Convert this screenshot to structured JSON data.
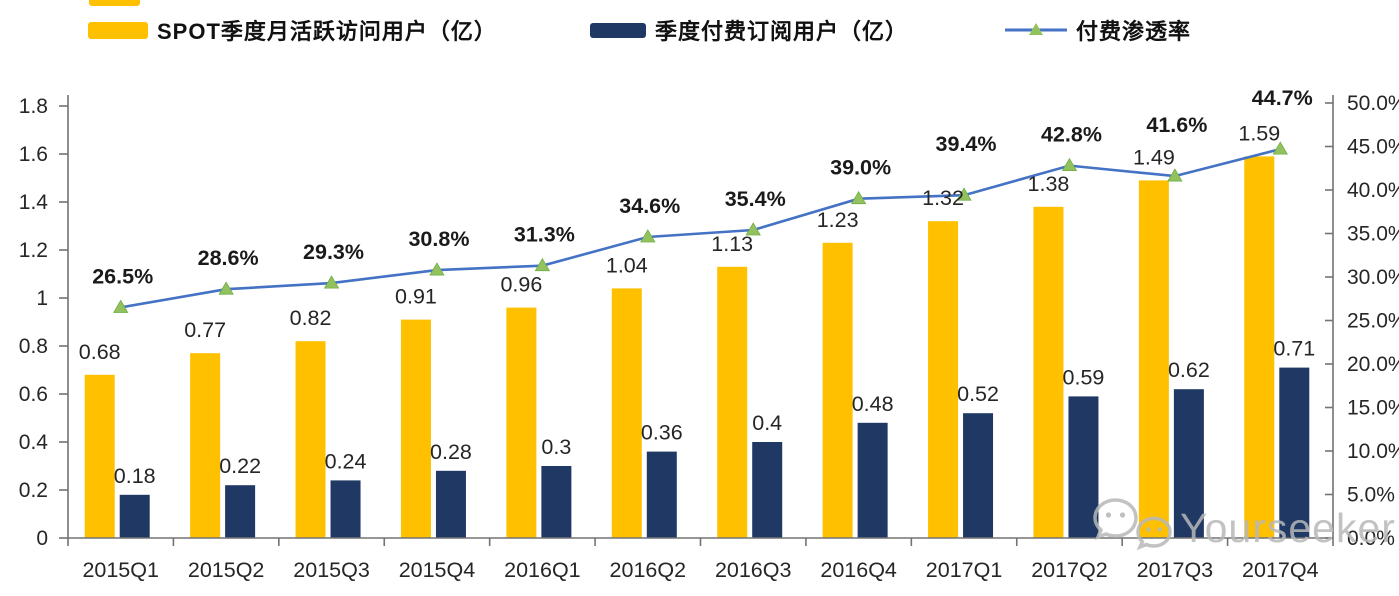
{
  "page": {
    "background": "#FFFFFF"
  },
  "legend": {
    "position": "top",
    "items": [
      {
        "id": "mau",
        "label": "SPOT季度月活跃访问用户（亿）",
        "swatch": "bar",
        "color": "#FFC000"
      },
      {
        "id": "subscribers",
        "label": "季度付费订阅用户（亿）",
        "swatch": "bar",
        "color": "#1F3864"
      },
      {
        "id": "penetration",
        "label": "付费渗透率",
        "swatch": "line-with-triangle-marker",
        "line_color": "#4472C4",
        "marker_color": "#93C15E"
      }
    ]
  },
  "chart_data": {
    "type": "combo-bar-line",
    "categories": [
      "2015Q1",
      "2015Q2",
      "2015Q3",
      "2015Q4",
      "2016Q1",
      "2016Q2",
      "2016Q3",
      "2016Q4",
      "2017Q1",
      "2017Q2",
      "2017Q3",
      "2017Q4"
    ],
    "series": [
      {
        "name": "SPOT季度月活跃访问用户（亿）",
        "type": "bar",
        "y_axis": "left",
        "color": "#FFC000",
        "values": [
          0.68,
          0.77,
          0.82,
          0.91,
          0.96,
          1.04,
          1.13,
          1.23,
          1.32,
          1.38,
          1.49,
          1.59
        ],
        "labels": [
          "0.68",
          "0.77",
          "0.82",
          "0.91",
          "0.96",
          "1.04",
          "1.13",
          "1.23",
          "1.32",
          "1.38",
          "1.49",
          "1.59"
        ]
      },
      {
        "name": "季度付费订阅用户（亿）",
        "type": "bar",
        "y_axis": "left",
        "color": "#1F3864",
        "values": [
          0.18,
          0.22,
          0.24,
          0.28,
          0.3,
          0.36,
          0.4,
          0.48,
          0.52,
          0.59,
          0.62,
          0.71
        ],
        "labels": [
          "0.18",
          "0.22",
          "0.24",
          "0.28",
          "0.3",
          "0.36",
          "0.4",
          "0.48",
          "0.52",
          "0.59",
          "0.62",
          "0.71"
        ]
      },
      {
        "name": "付费渗透率",
        "type": "line",
        "y_axis": "right",
        "color": "#4472C4",
        "marker": "triangle",
        "marker_color": "#93C15E",
        "marker_edge": "#70AD47",
        "values": [
          26.5,
          28.6,
          29.3,
          30.8,
          31.3,
          34.6,
          35.4,
          39.0,
          39.4,
          42.8,
          41.6,
          44.7
        ],
        "labels": [
          "26.5%",
          "28.6%",
          "29.3%",
          "30.8%",
          "31.3%",
          "34.6%",
          "35.4%",
          "39.0%",
          "39.4%",
          "42.8%",
          "41.6%",
          "44.7%"
        ]
      }
    ],
    "left_axis": {
      "min": 0,
      "max": 1.8,
      "step": 0.2,
      "tick_labels": [
        "0",
        "0.2",
        "0.4",
        "0.6",
        "0.8",
        "1",
        "1.2",
        "1.4",
        "1.6",
        "1.8"
      ]
    },
    "right_axis": {
      "min": 0,
      "max": 50,
      "step": 5,
      "unit": "%",
      "tick_labels": [
        "0.0%",
        "5.0%",
        "10.0%",
        "15.0%",
        "20.0%",
        "25.0%",
        "30.0%",
        "35.0%",
        "40.0%",
        "45.0%",
        "50.0%"
      ]
    },
    "grid": false,
    "legend_position": "top",
    "axis_color": "#737373",
    "label_color": "#262626"
  },
  "watermark": {
    "text": "Yourseeker",
    "icon": "wechat-icon"
  }
}
